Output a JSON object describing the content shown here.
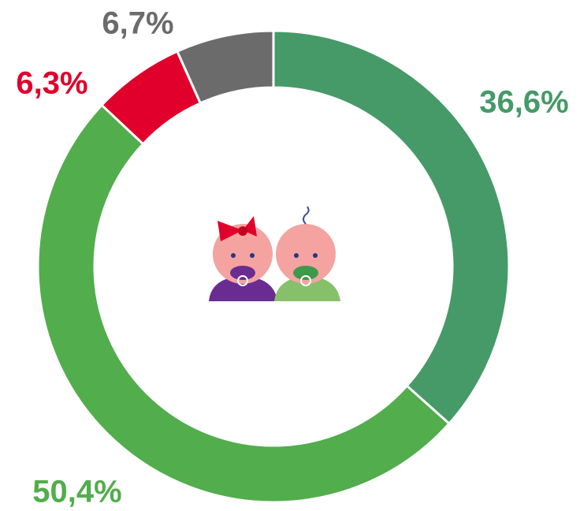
{
  "chart_data": {
    "type": "donut",
    "categories": [
      null,
      null,
      null,
      null
    ],
    "values": [
      36.6,
      50.4,
      6.3,
      6.7
    ],
    "value_labels": [
      "36,6%",
      "50,4%",
      "6,3%",
      "6,7%"
    ],
    "colors": [
      "#459a67",
      "#52ad4c",
      "#e0002b",
      "#6b6b6b"
    ]
  }
}
